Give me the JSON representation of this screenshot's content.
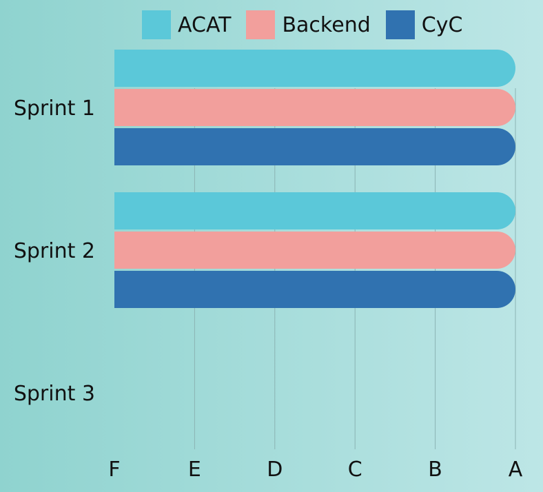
{
  "chart_data": {
    "type": "bar",
    "orientation": "horizontal",
    "categories": [
      "Sprint 1",
      "Sprint 2",
      "Sprint 3"
    ],
    "x_scale": [
      "F",
      "E",
      "D",
      "C",
      "B",
      "A"
    ],
    "series": [
      {
        "name": "ACAT",
        "color": "#5bc8d9",
        "values": [
          "A",
          "A",
          null
        ]
      },
      {
        "name": "Backend",
        "color": "#f29f9c",
        "values": [
          "A",
          "A",
          null
        ]
      },
      {
        "name": "CyC",
        "color": "#3072b0",
        "values": [
          "A",
          "A",
          null
        ]
      }
    ],
    "legend_position": "top",
    "grid": "vertical"
  }
}
